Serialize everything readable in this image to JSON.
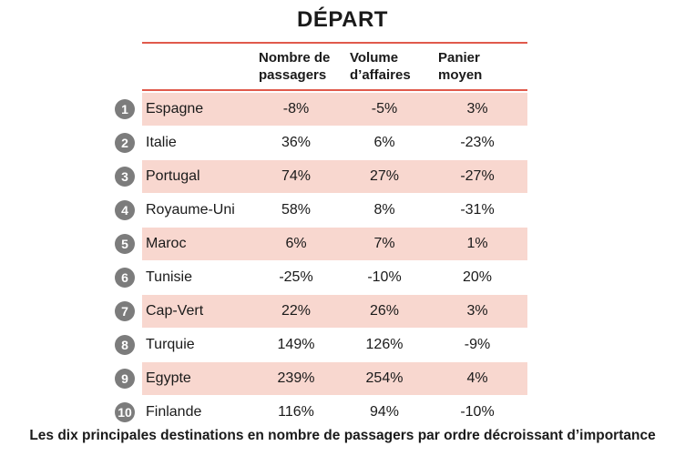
{
  "chart_data": {
    "type": "table",
    "title": "DÉPART",
    "columns": [
      [
        "Nombre de",
        "passagers"
      ],
      [
        "Volume",
        "d’affaires"
      ],
      [
        "Panier",
        "moyen"
      ]
    ],
    "rows": [
      {
        "rank": "1",
        "country": "Espagne",
        "values": [
          "-8%",
          "-5%",
          "3%"
        ]
      },
      {
        "rank": "2",
        "country": "Italie",
        "values": [
          "36%",
          "6%",
          "-23%"
        ]
      },
      {
        "rank": "3",
        "country": "Portugal",
        "values": [
          "74%",
          "27%",
          "-27%"
        ]
      },
      {
        "rank": "4",
        "country": "Royaume-Uni",
        "values": [
          "58%",
          "8%",
          "-31%"
        ]
      },
      {
        "rank": "5",
        "country": "Maroc",
        "values": [
          "6%",
          "7%",
          "1%"
        ]
      },
      {
        "rank": "6",
        "country": "Tunisie",
        "values": [
          "-25%",
          "-10%",
          "20%"
        ]
      },
      {
        "rank": "7",
        "country": "Cap-Vert",
        "values": [
          "22%",
          "26%",
          "3%"
        ]
      },
      {
        "rank": "8",
        "country": "Turquie",
        "values": [
          "149%",
          "126%",
          "-9%"
        ]
      },
      {
        "rank": "9",
        "country": "Egypte",
        "values": [
          "239%",
          "254%",
          "4%"
        ]
      },
      {
        "rank": "10",
        "country": "Finlande",
        "values": [
          "116%",
          "94%",
          "-10%"
        ]
      }
    ],
    "caption": "Les dix principales destinations en nombre de passagers par ordre décroissant d’importance"
  },
  "colors": {
    "accent_rule": "#e05a4c",
    "row_shade": "#f8d7cf",
    "badge": "#7c7c7c"
  }
}
